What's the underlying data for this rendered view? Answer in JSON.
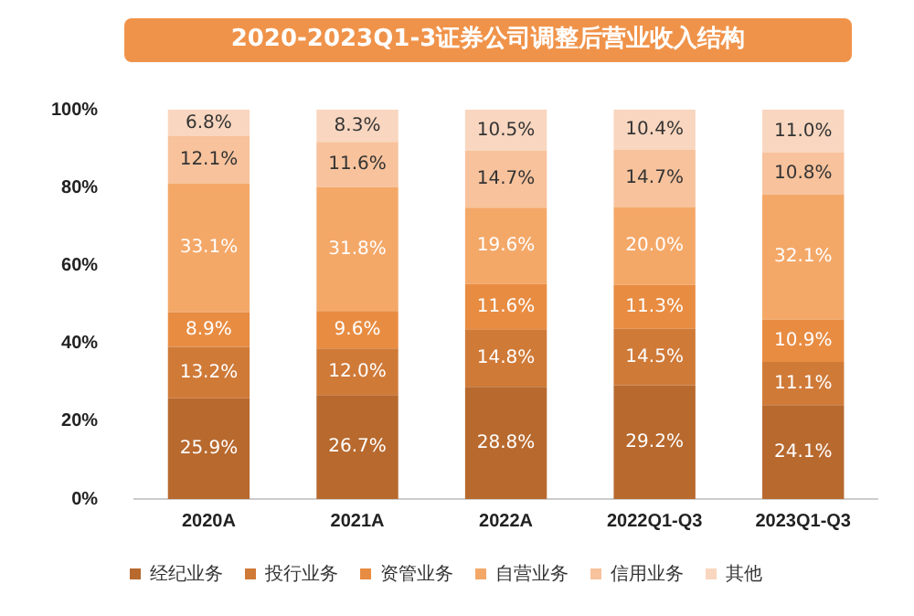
{
  "chart_data": {
    "type": "bar",
    "title": "2020-2023Q1-3证券公司调整后营业收入结构",
    "categories": [
      "2020A",
      "2021A",
      "2022A",
      "2022Q1-Q3",
      "2023Q1-Q3"
    ],
    "stacked": true,
    "grid": false,
    "legend": "bottom",
    "ylim": [
      0,
      100
    ],
    "yticks": [
      {
        "value": 0,
        "label": "0%"
      },
      {
        "value": 20,
        "label": "20%"
      },
      {
        "value": 40,
        "label": "40%"
      },
      {
        "value": 60,
        "label": "60%"
      },
      {
        "value": 80,
        "label": "80%"
      },
      {
        "value": 100,
        "label": "100%"
      }
    ],
    "series": [
      {
        "name": "经纪业务",
        "color": "#b8692e",
        "values": [
          25.9,
          26.7,
          28.8,
          29.2,
          24.1
        ],
        "value_labels": [
          "25.9%",
          "26.7%",
          "28.8%",
          "29.2%",
          "24.1%"
        ]
      },
      {
        "name": "投行业务",
        "color": "#d07a38",
        "values": [
          13.2,
          12.0,
          14.8,
          14.5,
          11.1
        ],
        "value_labels": [
          "13.2%",
          "12.0%",
          "14.8%",
          "14.5%",
          "11.1%"
        ]
      },
      {
        "name": "资管业务",
        "color": "#e88c42",
        "values": [
          8.9,
          9.6,
          11.6,
          11.3,
          10.9
        ],
        "value_labels": [
          "8.9%",
          "9.6%",
          "11.6%",
          "11.3%",
          "10.9%"
        ]
      },
      {
        "name": "自营业务",
        "color": "#f4a868",
        "values": [
          33.1,
          31.8,
          19.6,
          20.0,
          32.1
        ],
        "value_labels": [
          "33.1%",
          "31.8%",
          "19.6%",
          "20.0%",
          "32.1%"
        ]
      },
      {
        "name": "信用业务",
        "color": "#f7c29c",
        "values": [
          12.1,
          11.6,
          14.7,
          14.7,
          10.8
        ],
        "value_labels": [
          "12.1%",
          "11.6%",
          "14.7%",
          "14.7%",
          "10.8%"
        ]
      },
      {
        "name": "其他",
        "color": "#f9d6bf",
        "values": [
          6.8,
          8.3,
          10.5,
          10.4,
          11.0
        ],
        "value_labels": [
          "6.8%",
          "8.3%",
          "10.5%",
          "10.4%",
          "11.0%"
        ]
      }
    ]
  }
}
